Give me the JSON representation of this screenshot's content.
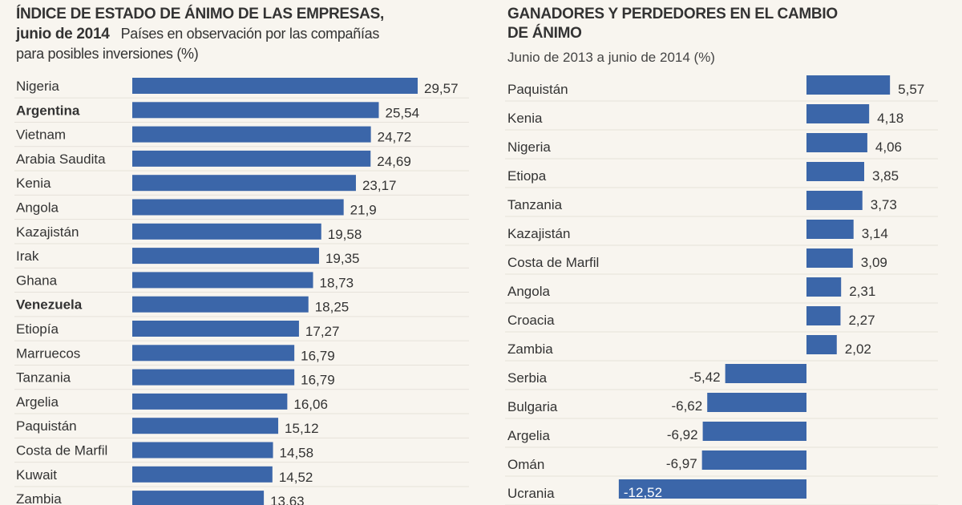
{
  "colors": {
    "bar": "#3b66a9",
    "background": "#f8f5ef",
    "separator": "#e6e2da"
  },
  "chart_data": [
    {
      "type": "bar",
      "orientation": "horizontal",
      "title": "ÍNDICE DE ESTADO DE ÁNIMO DE LAS EMPRESAS,",
      "title_line2_bold": "junio de 2014",
      "subtitle": "Países en observación por las compañías para posibles inversiones (%)",
      "subtitle_line1": "Países en observación por las compañías",
      "subtitle_line2": "para posibles inversiones (%)",
      "categories": [
        "Nigeria",
        "Argentina",
        "Vietnam",
        "Arabia Saudita",
        "Kenia",
        "Angola",
        "Kazajistán",
        "Irak",
        "Ghana",
        "Venezuela",
        "Etiopía",
        "Marruecos",
        "Tanzania",
        "Argelia",
        "Paquistán",
        "Costa de Marfil",
        "Kuwait",
        "Zambia"
      ],
      "values": [
        29.57,
        25.54,
        24.72,
        24.69,
        23.17,
        21.9,
        19.58,
        19.35,
        18.73,
        18.25,
        17.27,
        16.79,
        16.79,
        16.06,
        15.12,
        14.58,
        14.52,
        13.63
      ],
      "value_labels": [
        "29,57",
        "25,54",
        "24,72",
        "24,69",
        "23,17",
        "21,9",
        "19,58",
        "19,35",
        "18,73",
        "18,25",
        "17,27",
        "16,79",
        "16,79",
        "16,06",
        "15,12",
        "14,58",
        "14,52",
        "13,63"
      ],
      "bold_categories": [
        "Argentina",
        "Venezuela"
      ],
      "xlim": [
        0,
        30
      ]
    },
    {
      "type": "bar",
      "orientation": "horizontal",
      "title": "GANADORES Y PERDEDORES EN EL CAMBIO",
      "title_line2": "DE ÁNIMO",
      "subtitle": "Junio de 2013 a junio de 2014 (%)",
      "categories": [
        "Paquistán",
        "Kenia",
        "Nigeria",
        "Etiopa",
        "Tanzania",
        "Kazajistán",
        "Costa de Marfil",
        "Angola",
        "Croacia",
        "Zambia",
        "Serbia",
        "Bulgaria",
        "Argelia",
        "Omán",
        "Ucrania"
      ],
      "values": [
        5.57,
        4.18,
        4.06,
        3.85,
        3.73,
        3.14,
        3.09,
        2.31,
        2.27,
        2.02,
        -5.42,
        -6.62,
        -6.92,
        -6.97,
        -12.52
      ],
      "value_labels": [
        "5,57",
        "4,18",
        "4,06",
        "3,85",
        "3,73",
        "3,14",
        "3,09",
        "2,31",
        "2,27",
        "2,02",
        "-5,42",
        "-6,62",
        "-6,92",
        "-6,97",
        "-12,52"
      ],
      "xlim": [
        -13,
        6
      ]
    }
  ]
}
